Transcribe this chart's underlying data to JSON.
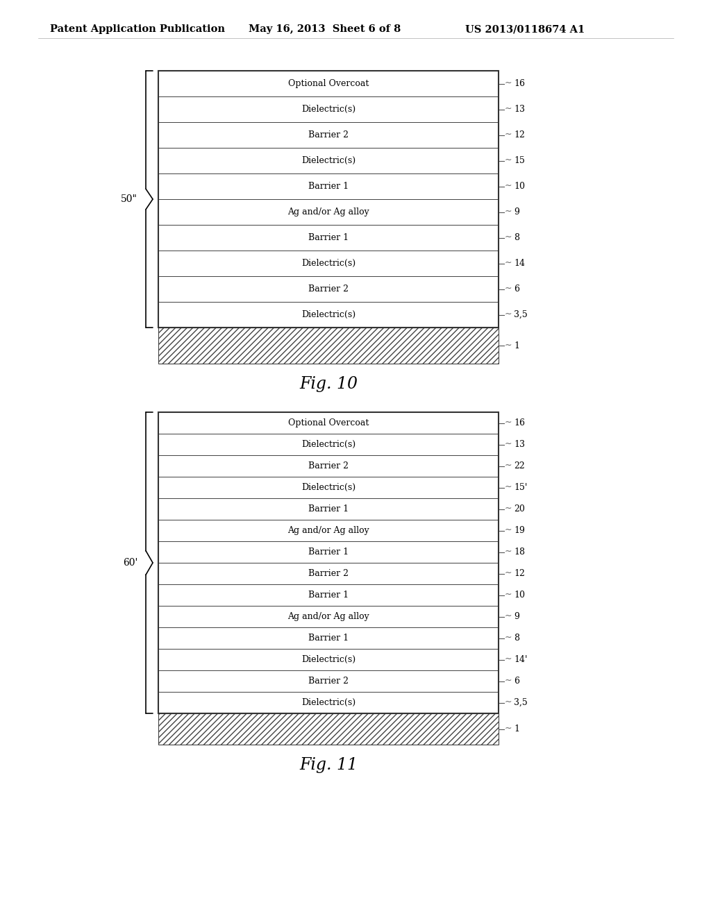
{
  "header_left": "Patent Application Publication",
  "header_mid": "May 16, 2013  Sheet 6 of 8",
  "header_right": "US 2013/0118674 A1",
  "fig10": {
    "label": "50\"",
    "caption": "Fig. 10",
    "layers": [
      {
        "text": "Optional Overcoat",
        "ref": "16"
      },
      {
        "text": "Dielectric(s)",
        "ref": "13"
      },
      {
        "text": "Barrier 2",
        "ref": "12"
      },
      {
        "text": "Dielectric(s)",
        "ref": "15"
      },
      {
        "text": "Barrier 1",
        "ref": "10"
      },
      {
        "text": "Ag and/or Ag alloy",
        "ref": "9"
      },
      {
        "text": "Barrier 1",
        "ref": "8"
      },
      {
        "text": "Dielectric(s)",
        "ref": "14"
      },
      {
        "text": "Barrier 2",
        "ref": "6"
      },
      {
        "text": "Dielectric(s)",
        "ref": "3,5"
      }
    ],
    "substrate_ref": "1"
  },
  "fig11": {
    "label": "60'",
    "caption": "Fig. 11",
    "layers": [
      {
        "text": "Optional Overcoat",
        "ref": "16"
      },
      {
        "text": "Dielectric(s)",
        "ref": "13"
      },
      {
        "text": "Barrier 2",
        "ref": "22"
      },
      {
        "text": "Dielectric(s)",
        "ref": "15'"
      },
      {
        "text": "Barrier 1",
        "ref": "20"
      },
      {
        "text": "Ag and/or Ag alloy",
        "ref": "19"
      },
      {
        "text": "Barrier 1",
        "ref": "18"
      },
      {
        "text": "Barrier 2",
        "ref": "12"
      },
      {
        "text": "Barrier 1",
        "ref": "10"
      },
      {
        "text": "Ag and/or Ag alloy",
        "ref": "9"
      },
      {
        "text": "Barrier 1",
        "ref": "8"
      },
      {
        "text": "Dielectric(s)",
        "ref": "14'"
      },
      {
        "text": "Barrier 2",
        "ref": "6"
      },
      {
        "text": "Dielectric(s)",
        "ref": "3,5"
      }
    ],
    "substrate_ref": "1"
  },
  "bg_color": "#ffffff",
  "text_color": "#000000",
  "layer_bg": "#ffffff",
  "border_color": "#444444"
}
